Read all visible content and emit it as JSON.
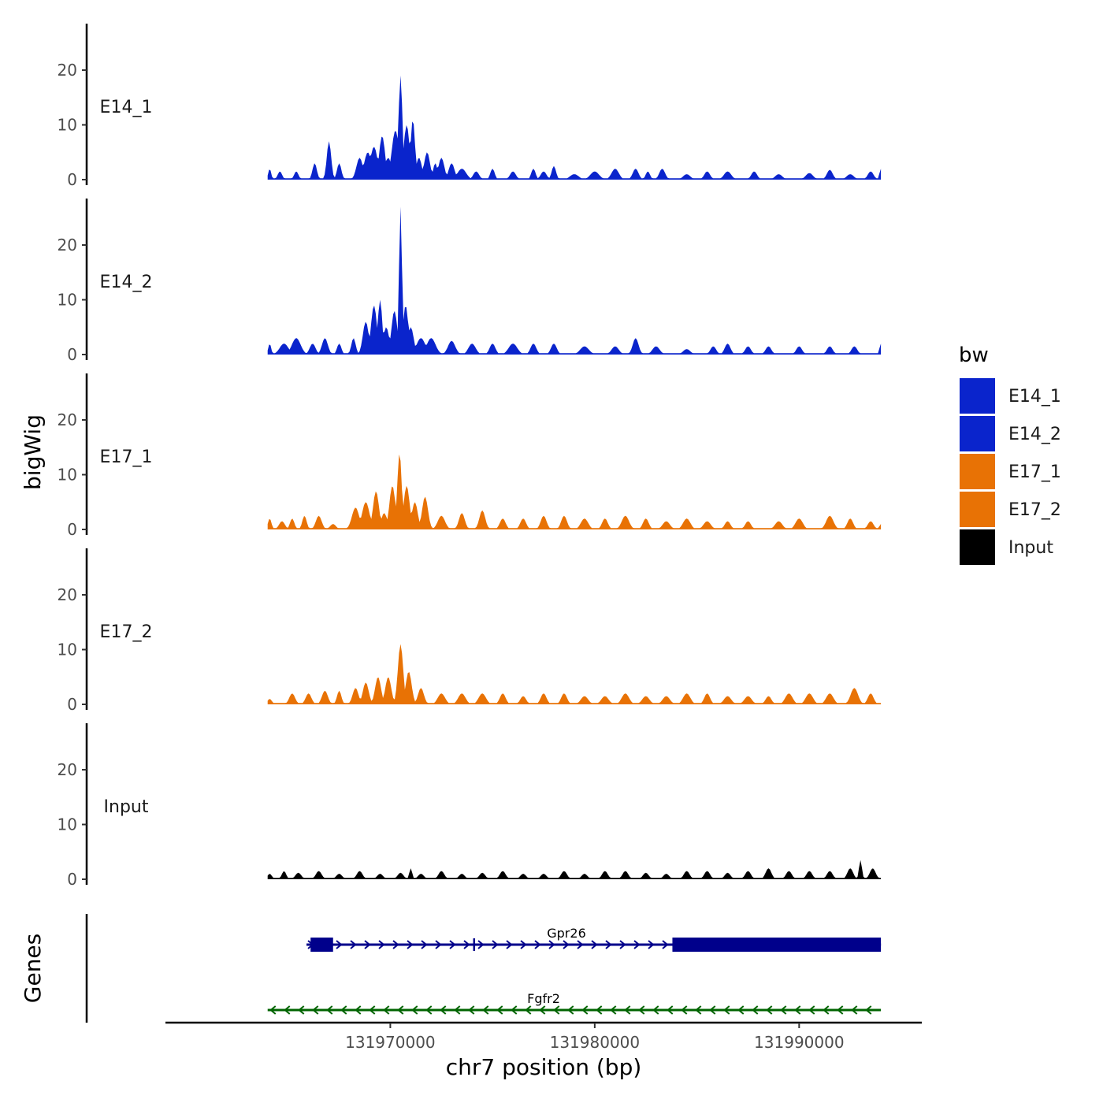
{
  "chart_data": {
    "type": "area",
    "xlabel": "chr7 position (bp)",
    "ylabel": "bigWig",
    "xlim": [
      131959000,
      131996000
    ],
    "x_ticks": [
      "131970000",
      "131980000",
      "131990000"
    ],
    "ylim": [
      0,
      28
    ],
    "y_ticks": [
      "0",
      "10",
      "20"
    ],
    "x_start": 131964000,
    "x_end": 131994000,
    "legend": {
      "title": "bw",
      "items": [
        {
          "label": "E14_1",
          "color": "#0a24cc"
        },
        {
          "label": "E14_2",
          "color": "#0a24cc"
        },
        {
          "label": "E17_1",
          "color": "#e87205"
        },
        {
          "label": "E17_2",
          "color": "#e87205"
        },
        {
          "label": "Input",
          "color": "#000000"
        }
      ]
    },
    "series": [
      {
        "name": "E14_1",
        "color": "#0a24cc",
        "peaks": [
          [
            131964100,
            2,
            100
          ],
          [
            131964600,
            1.5,
            150
          ],
          [
            131965400,
            1.5,
            150
          ],
          [
            131966300,
            3,
            150
          ],
          [
            131967000,
            7,
            150
          ],
          [
            131967500,
            3,
            150
          ],
          [
            131968500,
            4,
            220
          ],
          [
            131968900,
            5,
            250
          ],
          [
            131969200,
            6,
            250
          ],
          [
            131969600,
            8,
            200
          ],
          [
            131969900,
            4,
            200
          ],
          [
            131970250,
            9,
            250
          ],
          [
            131970500,
            19,
            130
          ],
          [
            131970800,
            10,
            200
          ],
          [
            131971100,
            11,
            150
          ],
          [
            131971400,
            4,
            200
          ],
          [
            131971800,
            5,
            200
          ],
          [
            131972200,
            3,
            150
          ],
          [
            131972500,
            4,
            200
          ],
          [
            131973000,
            3,
            200
          ],
          [
            131973500,
            2,
            300
          ],
          [
            131974200,
            1.5,
            200
          ],
          [
            131975000,
            2,
            150
          ],
          [
            131976000,
            1.5,
            200
          ],
          [
            131977000,
            2,
            150
          ],
          [
            131977500,
            1.5,
            200
          ],
          [
            131978000,
            2.5,
            150
          ],
          [
            131979000,
            1,
            300
          ],
          [
            131980000,
            1.5,
            300
          ],
          [
            131981000,
            2,
            250
          ],
          [
            131982000,
            2,
            200
          ],
          [
            131982600,
            1.5,
            150
          ],
          [
            131983300,
            2,
            200
          ],
          [
            131984500,
            1,
            250
          ],
          [
            131985500,
            1.5,
            200
          ],
          [
            131986500,
            1.5,
            250
          ],
          [
            131987800,
            1.5,
            200
          ],
          [
            131989000,
            1,
            250
          ],
          [
            131990500,
            1.2,
            250
          ],
          [
            131991500,
            1.8,
            200
          ],
          [
            131992500,
            1,
            250
          ],
          [
            131993500,
            1.5,
            200
          ],
          [
            131994000,
            2,
            100
          ]
        ]
      },
      {
        "name": "E14_2",
        "color": "#0a24cc",
        "peaks": [
          [
            131964100,
            2,
            100
          ],
          [
            131964800,
            2,
            300
          ],
          [
            131965400,
            3,
            300
          ],
          [
            131966200,
            2,
            200
          ],
          [
            131966800,
            3,
            200
          ],
          [
            131967500,
            2,
            150
          ],
          [
            131968200,
            3,
            150
          ],
          [
            131968800,
            6,
            200
          ],
          [
            131969200,
            9,
            200
          ],
          [
            131969500,
            10,
            150
          ],
          [
            131969800,
            5,
            200
          ],
          [
            131970200,
            8,
            200
          ],
          [
            131970500,
            27,
            100
          ],
          [
            131970750,
            9,
            180
          ],
          [
            131971000,
            5,
            200
          ],
          [
            131971500,
            3,
            300
          ],
          [
            131972000,
            3,
            300
          ],
          [
            131973000,
            2.5,
            250
          ],
          [
            131974000,
            2,
            250
          ],
          [
            131975000,
            2,
            200
          ],
          [
            131976000,
            2,
            300
          ],
          [
            131977000,
            2,
            200
          ],
          [
            131978000,
            2,
            200
          ],
          [
            131979500,
            1.5,
            300
          ],
          [
            131981000,
            1.5,
            250
          ],
          [
            131982000,
            3,
            200
          ],
          [
            131983000,
            1.5,
            250
          ],
          [
            131984500,
            1,
            250
          ],
          [
            131985800,
            1.5,
            200
          ],
          [
            131986500,
            2,
            200
          ],
          [
            131987500,
            1.5,
            200
          ],
          [
            131988500,
            1.5,
            200
          ],
          [
            131990000,
            1.5,
            200
          ],
          [
            131991500,
            1.5,
            200
          ],
          [
            131992700,
            1.5,
            200
          ],
          [
            131994000,
            2,
            100
          ]
        ]
      },
      {
        "name": "E17_1",
        "color": "#e87205",
        "peaks": [
          [
            131964100,
            2,
            120
          ],
          [
            131964700,
            1.5,
            200
          ],
          [
            131965200,
            2,
            150
          ],
          [
            131965800,
            2.5,
            150
          ],
          [
            131966500,
            2.5,
            200
          ],
          [
            131967200,
            1,
            200
          ],
          [
            131968300,
            4,
            250
          ],
          [
            131968800,
            5,
            250
          ],
          [
            131969300,
            7,
            200
          ],
          [
            131969700,
            3,
            200
          ],
          [
            131970100,
            8,
            200
          ],
          [
            131970450,
            14,
            150
          ],
          [
            131970800,
            8,
            200
          ],
          [
            131971200,
            5,
            200
          ],
          [
            131971700,
            6,
            200
          ],
          [
            131972500,
            2.5,
            250
          ],
          [
            131973500,
            3,
            200
          ],
          [
            131974500,
            3.5,
            200
          ],
          [
            131975500,
            2,
            200
          ],
          [
            131976500,
            2,
            200
          ],
          [
            131977500,
            2.5,
            200
          ],
          [
            131978500,
            2.5,
            200
          ],
          [
            131979500,
            2,
            250
          ],
          [
            131980500,
            2,
            200
          ],
          [
            131981500,
            2.5,
            250
          ],
          [
            131982500,
            2,
            200
          ],
          [
            131983500,
            1.5,
            250
          ],
          [
            131984500,
            2,
            250
          ],
          [
            131985500,
            1.5,
            250
          ],
          [
            131986500,
            1.5,
            200
          ],
          [
            131987500,
            1.5,
            200
          ],
          [
            131989000,
            1.5,
            250
          ],
          [
            131990000,
            2,
            250
          ],
          [
            131991500,
            2.5,
            250
          ],
          [
            131992500,
            2,
            200
          ],
          [
            131993500,
            1.5,
            200
          ],
          [
            131994000,
            1,
            100
          ]
        ]
      },
      {
        "name": "E17_2",
        "color": "#e87205",
        "peaks": [
          [
            131964100,
            1,
            150
          ],
          [
            131965200,
            2,
            200
          ],
          [
            131966000,
            2,
            200
          ],
          [
            131966800,
            2.5,
            200
          ],
          [
            131967500,
            2.5,
            150
          ],
          [
            131968300,
            3,
            200
          ],
          [
            131968800,
            4,
            200
          ],
          [
            131969400,
            5,
            200
          ],
          [
            131969900,
            5,
            200
          ],
          [
            131970500,
            11,
            180
          ],
          [
            131970900,
            6,
            200
          ],
          [
            131971500,
            3,
            200
          ],
          [
            131972500,
            2,
            250
          ],
          [
            131973500,
            2,
            250
          ],
          [
            131974500,
            2,
            250
          ],
          [
            131975500,
            2,
            200
          ],
          [
            131976500,
            1.5,
            200
          ],
          [
            131977500,
            2,
            200
          ],
          [
            131978500,
            2,
            200
          ],
          [
            131979500,
            1.5,
            250
          ],
          [
            131980500,
            1.5,
            250
          ],
          [
            131981500,
            2,
            250
          ],
          [
            131982500,
            1.5,
            250
          ],
          [
            131983500,
            1.5,
            250
          ],
          [
            131984500,
            2,
            250
          ],
          [
            131985500,
            2,
            200
          ],
          [
            131986500,
            1.5,
            250
          ],
          [
            131987500,
            1.5,
            250
          ],
          [
            131988500,
            1.5,
            200
          ],
          [
            131989500,
            2,
            250
          ],
          [
            131990500,
            2,
            250
          ],
          [
            131991500,
            2,
            250
          ],
          [
            131992700,
            3,
            250
          ],
          [
            131993500,
            2,
            200
          ]
        ]
      },
      {
        "name": "Input",
        "color": "#000000",
        "peaks": [
          [
            131964100,
            1,
            150
          ],
          [
            131964800,
            1.5,
            150
          ],
          [
            131965500,
            1.2,
            200
          ],
          [
            131966500,
            1.5,
            200
          ],
          [
            131967500,
            1,
            200
          ],
          [
            131968500,
            1.5,
            200
          ],
          [
            131969500,
            1,
            200
          ],
          [
            131970500,
            1.2,
            200
          ],
          [
            131971000,
            2,
            100
          ],
          [
            131971500,
            1,
            200
          ],
          [
            131972500,
            1.5,
            200
          ],
          [
            131973500,
            1,
            200
          ],
          [
            131974500,
            1.2,
            200
          ],
          [
            131975500,
            1.5,
            200
          ],
          [
            131976500,
            1,
            200
          ],
          [
            131977500,
            1,
            200
          ],
          [
            131978500,
            1.5,
            200
          ],
          [
            131979500,
            1,
            200
          ],
          [
            131980500,
            1.5,
            200
          ],
          [
            131981500,
            1.5,
            200
          ],
          [
            131982500,
            1.2,
            200
          ],
          [
            131983500,
            1,
            200
          ],
          [
            131984500,
            1.5,
            200
          ],
          [
            131985500,
            1.5,
            200
          ],
          [
            131986500,
            1.2,
            200
          ],
          [
            131987500,
            1.5,
            200
          ],
          [
            131988500,
            2,
            200
          ],
          [
            131989500,
            1.5,
            200
          ],
          [
            131990500,
            1.5,
            200
          ],
          [
            131991500,
            1.5,
            200
          ],
          [
            131992500,
            2,
            200
          ],
          [
            131993000,
            3.5,
            100
          ],
          [
            131993600,
            2,
            200
          ]
        ]
      }
    ],
    "genes": {
      "title": "Genes",
      "items": [
        {
          "name": "Gpr26",
          "color": "#00008b",
          "strand": "+",
          "start": 131965900,
          "end": 131994000,
          "exons": [
            [
              131966100,
              131967200
            ],
            [
              131983800,
              131994000
            ]
          ],
          "tick": 131974100
        },
        {
          "name": "Fgfr2",
          "color": "#006400",
          "strand": "-",
          "start": 131964000,
          "end": 131994000,
          "exons": [],
          "tick": null
        }
      ]
    }
  }
}
